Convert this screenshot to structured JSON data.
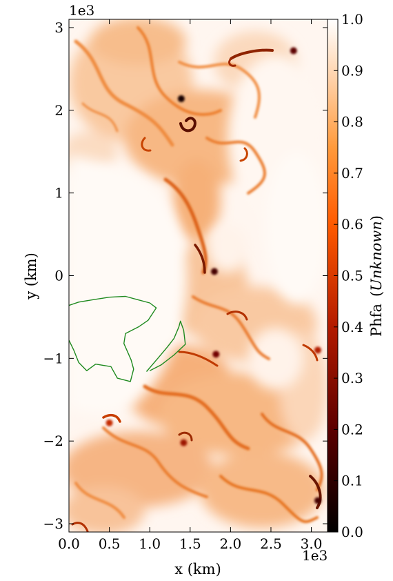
{
  "chart_data": {
    "type": "heatmap",
    "xlabel": "x  (km)",
    "ylabel": "y  (km)",
    "x_offset_text": "1e3",
    "y_offset_text": "1e3",
    "xlim": [
      0,
      3.2
    ],
    "ylim": [
      -3.1,
      3.1
    ],
    "x_ticks": [
      0.0,
      0.5,
      1.0,
      1.5,
      2.0,
      2.5,
      3.0
    ],
    "x_tick_labels": [
      "0.0",
      "0.5",
      "1.0",
      "1.5",
      "2.0",
      "2.5",
      "3.0"
    ],
    "y_ticks": [
      -3,
      -2,
      -1,
      0,
      1,
      2,
      3
    ],
    "y_tick_labels": [
      "−3",
      "−2",
      "−1",
      "0",
      "1",
      "2",
      "3"
    ],
    "colorbar": {
      "label_text": "Phfa",
      "label_italic": "(Unknown)",
      "range": [
        0.0,
        1.0
      ],
      "ticks": [
        0.0,
        0.1,
        0.2,
        0.3,
        0.4,
        0.5,
        0.6,
        0.7,
        0.8,
        0.9,
        1.0
      ],
      "tick_labels": [
        "0.0",
        "0.1",
        "0.2",
        "0.3",
        "0.4",
        "0.5",
        "0.6",
        "0.7",
        "0.8",
        "0.9",
        "1.0"
      ],
      "colormap": "gist_heat"
    },
    "coastline_color": "#1f8a1f",
    "coastline": [
      {
        "name": "island",
        "points": [
          [
            0,
            -0.36
          ],
          [
            0.12,
            -0.32
          ],
          [
            0.3,
            -0.29
          ],
          [
            0.5,
            -0.26
          ],
          [
            0.7,
            -0.25
          ],
          [
            0.85,
            -0.29
          ],
          [
            1.0,
            -0.33
          ],
          [
            1.08,
            -0.39
          ],
          [
            0.98,
            -0.54
          ],
          [
            0.86,
            -0.62
          ],
          [
            0.7,
            -0.7
          ],
          [
            0.68,
            -0.82
          ],
          [
            0.77,
            -1.02
          ],
          [
            0.8,
            -1.13
          ],
          [
            0.76,
            -1.28
          ],
          [
            0.6,
            -1.24
          ],
          [
            0.52,
            -1.1
          ],
          [
            0.33,
            -1.07
          ],
          [
            0.22,
            -1.15
          ],
          [
            0.12,
            -1.05
          ],
          [
            0.06,
            -0.9
          ],
          [
            0.0,
            -0.78
          ]
        ]
      },
      {
        "name": "peninsula",
        "points": [
          [
            0.96,
            -1.16
          ],
          [
            1.1,
            -1.0
          ],
          [
            1.22,
            -0.86
          ],
          [
            1.3,
            -0.76
          ],
          [
            1.36,
            -0.62
          ],
          [
            1.38,
            -0.55
          ],
          [
            1.42,
            -0.66
          ],
          [
            1.44,
            -0.83
          ],
          [
            1.3,
            -0.96
          ],
          [
            1.14,
            -1.08
          ],
          [
            1.0,
            -1.15
          ]
        ]
      }
    ],
    "dark_features": [
      {
        "x": 1.39,
        "y": 2.14,
        "v": 0.05
      },
      {
        "x": 2.78,
        "y": 2.72,
        "v": 0.2
      },
      {
        "x": 1.8,
        "y": 0.05,
        "v": 0.15
      },
      {
        "x": 1.82,
        "y": -0.95,
        "v": 0.25
      },
      {
        "x": 3.08,
        "y": -2.72,
        "v": 0.15
      },
      {
        "x": 0.5,
        "y": -1.78,
        "v": 0.45
      },
      {
        "x": 3.08,
        "y": -0.9,
        "v": 0.4
      },
      {
        "x": 1.42,
        "y": -2.02,
        "v": 0.35
      }
    ]
  }
}
